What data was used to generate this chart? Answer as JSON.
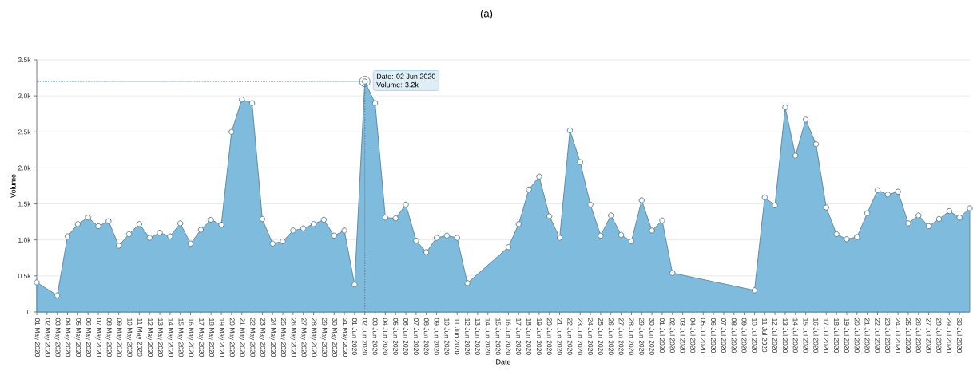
{
  "chart_data": {
    "type": "area",
    "title": "(a)",
    "xlabel": "Date",
    "ylabel": "Volume",
    "series": [
      {
        "color": "#7fbbdc",
        "x": [
          "2020-05-01",
          "2020-05-03",
          "2020-05-04",
          "2020-05-05",
          "2020-05-06",
          "2020-05-07",
          "2020-05-08",
          "2020-05-09",
          "2020-05-10",
          "2020-05-11",
          "2020-05-12",
          "2020-05-13",
          "2020-05-14",
          "2020-05-15",
          "2020-05-16",
          "2020-05-17",
          "2020-05-18",
          "2020-05-19",
          "2020-05-20",
          "2020-05-21",
          "2020-05-22",
          "2020-05-23",
          "2020-05-24",
          "2020-05-25",
          "2020-05-26",
          "2020-05-27",
          "2020-05-28",
          "2020-05-29",
          "2020-05-30",
          "2020-05-31",
          "2020-06-01",
          "2020-06-02",
          "2020-06-03",
          "2020-06-04",
          "2020-06-05",
          "2020-06-06",
          "2020-06-07",
          "2020-06-08",
          "2020-06-09",
          "2020-06-10",
          "2020-06-11",
          "2020-06-12",
          "2020-06-16",
          "2020-06-17",
          "2020-06-18",
          "2020-06-19",
          "2020-06-20",
          "2020-06-21",
          "2020-06-22",
          "2020-06-23",
          "2020-06-24",
          "2020-06-25",
          "2020-06-26",
          "2020-06-27",
          "2020-06-28",
          "2020-06-29",
          "2020-06-30",
          "2020-07-01",
          "2020-07-02",
          "2020-07-10",
          "2020-07-11",
          "2020-07-12",
          "2020-07-13",
          "2020-07-14",
          "2020-07-15",
          "2020-07-16",
          "2020-07-17",
          "2020-07-18",
          "2020-07-19",
          "2020-07-20",
          "2020-07-21",
          "2020-07-22",
          "2020-07-23",
          "2020-07-24",
          "2020-07-25",
          "2020-07-26",
          "2020-07-27",
          "2020-07-28",
          "2020-07-29",
          "2020-07-30",
          "2020-07-31"
        ],
        "values": [
          0.41,
          0.23,
          1.05,
          1.22,
          1.31,
          1.19,
          1.26,
          0.92,
          1.08,
          1.22,
          1.03,
          1.1,
          1.05,
          1.23,
          0.95,
          1.14,
          1.28,
          1.21,
          2.5,
          2.95,
          2.9,
          1.29,
          0.95,
          0.98,
          1.13,
          1.16,
          1.22,
          1.28,
          1.06,
          1.13,
          0.38,
          3.2,
          2.9,
          1.31,
          1.3,
          1.49,
          0.99,
          0.83,
          1.03,
          1.06,
          1.03,
          0.4,
          0.9,
          1.22,
          1.7,
          1.88,
          1.33,
          1.03,
          2.52,
          2.08,
          1.49,
          1.06,
          1.34,
          1.07,
          0.98,
          1.55,
          1.13,
          1.27,
          0.54,
          0.3,
          1.59,
          1.48,
          2.84,
          2.17,
          2.67,
          2.33,
          1.45,
          1.08,
          1.01,
          1.04,
          1.37,
          1.69,
          1.63,
          1.67,
          1.23,
          1.34,
          1.19,
          1.29,
          1.4,
          1.31,
          1.44
        ]
      }
    ],
    "marker": "circle",
    "line_style": "solid",
    "grid": "y",
    "ylim": [
      0,
      3.5
    ],
    "yticks": [
      0,
      {
        "value": 0.5,
        "label": "0.5k"
      },
      {
        "value": 1.0,
        "label": "1.0k"
      },
      {
        "value": 1.5,
        "label": "1.5k"
      },
      {
        "value": 2.0,
        "label": "2.0k"
      },
      {
        "value": 2.5,
        "label": "2.5k"
      },
      {
        "value": 3.0,
        "label": "3.0k"
      },
      {
        "value": 3.5,
        "label": "3.5k"
      }
    ],
    "xlim": [
      "2020-05-01",
      "2020-07-31"
    ],
    "xticks": [
      {
        "value": "2020-05-01",
        "label": "01 May 2020"
      },
      {
        "value": "2020-05-02",
        "label": "02 May 2020"
      },
      {
        "value": "2020-05-03",
        "label": "03 May 2020"
      },
      {
        "value": "2020-05-04",
        "label": "04 May 2020"
      },
      {
        "value": "2020-05-05",
        "label": "05 May 2020"
      },
      {
        "value": "2020-05-06",
        "label": "06 May 2020"
      },
      {
        "value": "2020-05-07",
        "label": "07 May 2020"
      },
      {
        "value": "2020-05-08",
        "label": "08 May 2020"
      },
      {
        "value": "2020-05-09",
        "label": "09 May 2020"
      },
      {
        "value": "2020-05-10",
        "label": "10 May 2020"
      },
      {
        "value": "2020-05-11",
        "label": "11 May 2020"
      },
      {
        "value": "2020-05-12",
        "label": "12 May 2020"
      },
      {
        "value": "2020-05-13",
        "label": "13 May 2020"
      },
      {
        "value": "2020-05-14",
        "label": "14 May 2020"
      },
      {
        "value": "2020-05-15",
        "label": "15 May 2020"
      },
      {
        "value": "2020-05-16",
        "label": "16 May 2020"
      },
      {
        "value": "2020-05-17",
        "label": "17 May 2020"
      },
      {
        "value": "2020-05-18",
        "label": "18 May 2020"
      },
      {
        "value": "2020-05-19",
        "label": "19 May 2020"
      },
      {
        "value": "2020-05-20",
        "label": "20 May 2020"
      },
      {
        "value": "2020-05-21",
        "label": "21 May 2020"
      },
      {
        "value": "2020-05-22",
        "label": "22 May 2020"
      },
      {
        "value": "2020-05-23",
        "label": "23 May 2020"
      },
      {
        "value": "2020-05-24",
        "label": "24 May 2020"
      },
      {
        "value": "2020-05-25",
        "label": "25 May 2020"
      },
      {
        "value": "2020-05-26",
        "label": "26 May 2020"
      },
      {
        "value": "2020-05-27",
        "label": "27 May 2020"
      },
      {
        "value": "2020-05-28",
        "label": "28 May 2020"
      },
      {
        "value": "2020-05-29",
        "label": "29 May 2020"
      },
      {
        "value": "2020-05-30",
        "label": "30 May 2020"
      },
      {
        "value": "2020-05-31",
        "label": "31 May 2020"
      },
      {
        "value": "2020-06-01",
        "label": "01 Jun 2020"
      },
      {
        "value": "2020-06-02",
        "label": "02 Jun 2020"
      },
      {
        "value": "2020-06-03",
        "label": "03 Jun 2020"
      },
      {
        "value": "2020-06-04",
        "label": "04 Jun 2020"
      },
      {
        "value": "2020-06-05",
        "label": "05 Jun 2020"
      },
      {
        "value": "2020-06-06",
        "label": "06 Jun 2020"
      },
      {
        "value": "2020-06-07",
        "label": "07 Jun 2020"
      },
      {
        "value": "2020-06-08",
        "label": "08 Jun 2020"
      },
      {
        "value": "2020-06-09",
        "label": "09 Jun 2020"
      },
      {
        "value": "2020-06-10",
        "label": "10 Jun 2020"
      },
      {
        "value": "2020-06-11",
        "label": "11 Jun 2020"
      },
      {
        "value": "2020-06-12",
        "label": "12 Jun 2020"
      },
      {
        "value": "2020-06-13",
        "label": "13 Jun 2020"
      },
      {
        "value": "2020-06-14",
        "label": "14 Jun 2020"
      },
      {
        "value": "2020-06-15",
        "label": "15 Jun 2020"
      },
      {
        "value": "2020-06-16",
        "label": "16 Jun 2020"
      },
      {
        "value": "2020-06-17",
        "label": "17 Jun 2020"
      },
      {
        "value": "2020-06-18",
        "label": "18 Jun 2020"
      },
      {
        "value": "2020-06-19",
        "label": "19 Jun 2020"
      },
      {
        "value": "2020-06-20",
        "label": "20 Jun 2020"
      },
      {
        "value": "2020-06-21",
        "label": "21 Jun 2020"
      },
      {
        "value": "2020-06-22",
        "label": "22 Jun 2020"
      },
      {
        "value": "2020-06-23",
        "label": "23 Jun 2020"
      },
      {
        "value": "2020-06-24",
        "label": "24 Jun 2020"
      },
      {
        "value": "2020-06-25",
        "label": "25 Jun 2020"
      },
      {
        "value": "2020-06-26",
        "label": "26 Jun 2020"
      },
      {
        "value": "2020-06-27",
        "label": "27 Jun 2020"
      },
      {
        "value": "2020-06-28",
        "label": "28 Jun 2020"
      },
      {
        "value": "2020-06-29",
        "label": "29 Jun 2020"
      },
      {
        "value": "2020-06-30",
        "label": "30 Jun 2020"
      },
      {
        "value": "2020-07-01",
        "label": "01 Jul 2020"
      },
      {
        "value": "2020-07-02",
        "label": "02 Jul 2020"
      },
      {
        "value": "2020-07-03",
        "label": "03 Jul 2020"
      },
      {
        "value": "2020-07-04",
        "label": "04 Jul 2020"
      },
      {
        "value": "2020-07-05",
        "label": "05 Jul 2020"
      },
      {
        "value": "2020-07-06",
        "label": "06 Jul 2020"
      },
      {
        "value": "2020-07-07",
        "label": "07 Jul 2020"
      },
      {
        "value": "2020-07-08",
        "label": "08 Jul 2020"
      },
      {
        "value": "2020-07-09",
        "label": "09 Jul 2020"
      },
      {
        "value": "2020-07-10",
        "label": "10 Jul 2020"
      },
      {
        "value": "2020-07-11",
        "label": "11 Jul 2020"
      },
      {
        "value": "2020-07-12",
        "label": "12 Jul 2020"
      },
      {
        "value": "2020-07-13",
        "label": "13 Jul 2020"
      },
      {
        "value": "2020-07-14",
        "label": "14 Jul 2020"
      },
      {
        "value": "2020-07-15",
        "label": "15 Jul 2020"
      },
      {
        "value": "2020-07-16",
        "label": "16 Jul 2020"
      },
      {
        "value": "2020-07-17",
        "label": "17 Jul 2020"
      },
      {
        "value": "2020-07-18",
        "label": "18 Jul 2020"
      },
      {
        "value": "2020-07-19",
        "label": "19 Jul 2020"
      },
      {
        "value": "2020-07-20",
        "label": "20 Jul 2020"
      },
      {
        "value": "2020-07-21",
        "label": "21 Jul 2020"
      },
      {
        "value": "2020-07-22",
        "label": "22 Jul 2020"
      },
      {
        "value": "2020-07-23",
        "label": "23 Jul 2020"
      },
      {
        "value": "2020-07-24",
        "label": "24 Jul 2020"
      },
      {
        "value": "2020-07-25",
        "label": "25 Jul 2020"
      },
      {
        "value": "2020-07-26",
        "label": "26 Jul 2020"
      },
      {
        "value": "2020-07-27",
        "label": "27 Jul 2020"
      },
      {
        "value": "2020-07-28",
        "label": "28 Jul 2020"
      },
      {
        "value": "2020-07-29",
        "label": "29 Jul 2020"
      },
      {
        "value": "2020-07-30",
        "label": "30 Jul 2020"
      }
    ],
    "ref_lines": [
      {
        "axis": "y",
        "value": 3.2,
        "line_style": "dotted"
      },
      {
        "axis": "x",
        "value": "2020-06-02",
        "line_style": "dotted"
      }
    ],
    "annotations": [
      {
        "text": "Date: 02 Jun 2020",
        "x": "2020-06-02",
        "y": 3.2
      },
      "Volume: 3.2k"
    ]
  }
}
